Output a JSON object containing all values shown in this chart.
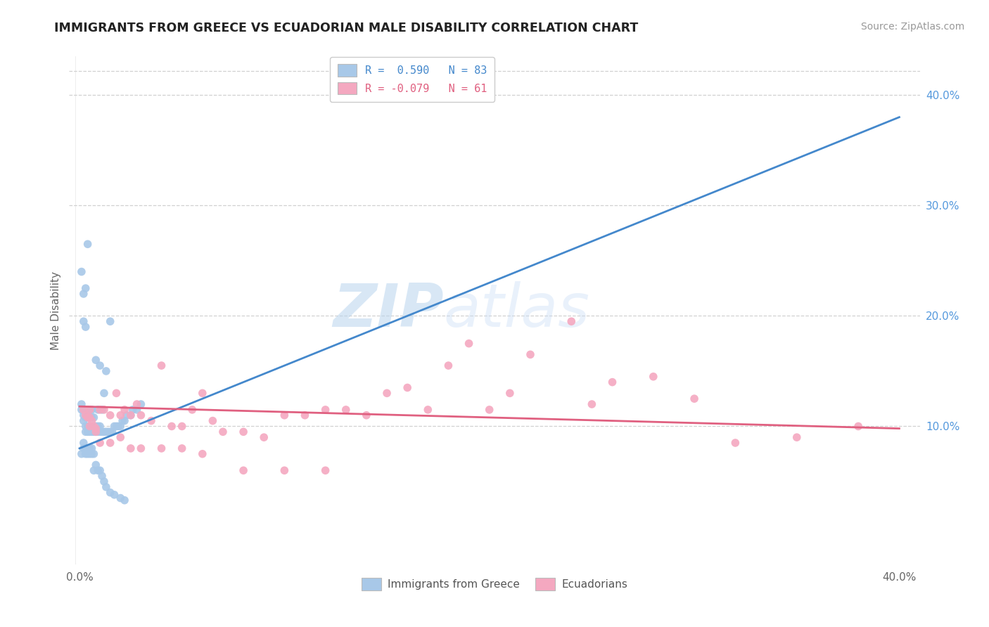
{
  "title": "IMMIGRANTS FROM GREECE VS ECUADORIAN MALE DISABILITY CORRELATION CHART",
  "source": "Source: ZipAtlas.com",
  "ylabel": "Male Disability",
  "right_yticks": [
    "40.0%",
    "30.0%",
    "20.0%",
    "10.0%"
  ],
  "right_ytick_vals": [
    0.4,
    0.3,
    0.2,
    0.1
  ],
  "xlim": [
    -0.005,
    0.41
  ],
  "ylim": [
    -0.025,
    0.435
  ],
  "legend_line1": "R =  0.590   N = 83",
  "legend_line2": "R = -0.079   N = 61",
  "color_blue": "#a8c8e8",
  "color_pink": "#f4a8c0",
  "trendline_blue": "#4488cc",
  "trendline_pink": "#e06080",
  "watermark_zip": "ZIP",
  "watermark_atlas": "atlas",
  "background_color": "#ffffff",
  "grid_color": "#cccccc",
  "blue_trendline_x": [
    0.0,
    0.4
  ],
  "blue_trendline_y": [
    0.08,
    0.38
  ],
  "pink_trendline_x": [
    0.0,
    0.4
  ],
  "pink_trendline_y": [
    0.118,
    0.098
  ],
  "blue_x": [
    0.001,
    0.001,
    0.001,
    0.002,
    0.002,
    0.002,
    0.002,
    0.002,
    0.003,
    0.003,
    0.003,
    0.003,
    0.003,
    0.003,
    0.004,
    0.004,
    0.004,
    0.004,
    0.004,
    0.005,
    0.005,
    0.005,
    0.005,
    0.006,
    0.006,
    0.006,
    0.006,
    0.007,
    0.007,
    0.007,
    0.008,
    0.008,
    0.008,
    0.009,
    0.009,
    0.009,
    0.01,
    0.01,
    0.01,
    0.011,
    0.011,
    0.012,
    0.012,
    0.013,
    0.013,
    0.014,
    0.015,
    0.015,
    0.016,
    0.017,
    0.018,
    0.019,
    0.02,
    0.021,
    0.022,
    0.023,
    0.025,
    0.026,
    0.028,
    0.03,
    0.001,
    0.002,
    0.002,
    0.003,
    0.003,
    0.004,
    0.004,
    0.005,
    0.005,
    0.006,
    0.006,
    0.007,
    0.007,
    0.008,
    0.009,
    0.01,
    0.011,
    0.012,
    0.013,
    0.015,
    0.017,
    0.02,
    0.022
  ],
  "blue_y": [
    0.115,
    0.12,
    0.24,
    0.105,
    0.11,
    0.115,
    0.195,
    0.22,
    0.095,
    0.1,
    0.108,
    0.115,
    0.19,
    0.225,
    0.095,
    0.1,
    0.108,
    0.115,
    0.265,
    0.095,
    0.1,
    0.108,
    0.115,
    0.095,
    0.1,
    0.108,
    0.115,
    0.095,
    0.1,
    0.108,
    0.095,
    0.1,
    0.16,
    0.095,
    0.1,
    0.115,
    0.095,
    0.1,
    0.155,
    0.095,
    0.115,
    0.095,
    0.13,
    0.095,
    0.15,
    0.095,
    0.095,
    0.195,
    0.095,
    0.1,
    0.1,
    0.1,
    0.1,
    0.105,
    0.105,
    0.11,
    0.11,
    0.115,
    0.115,
    0.12,
    0.075,
    0.08,
    0.085,
    0.075,
    0.08,
    0.075,
    0.08,
    0.075,
    0.08,
    0.075,
    0.08,
    0.075,
    0.06,
    0.065,
    0.06,
    0.06,
    0.055,
    0.05,
    0.045,
    0.04,
    0.038,
    0.035,
    0.033
  ],
  "pink_x": [
    0.002,
    0.003,
    0.004,
    0.005,
    0.005,
    0.006,
    0.007,
    0.008,
    0.01,
    0.012,
    0.015,
    0.018,
    0.02,
    0.022,
    0.025,
    0.028,
    0.03,
    0.035,
    0.04,
    0.045,
    0.05,
    0.055,
    0.06,
    0.065,
    0.07,
    0.08,
    0.09,
    0.1,
    0.11,
    0.12,
    0.13,
    0.14,
    0.15,
    0.16,
    0.17,
    0.18,
    0.19,
    0.2,
    0.21,
    0.22,
    0.24,
    0.25,
    0.26,
    0.28,
    0.3,
    0.32,
    0.35,
    0.38,
    0.005,
    0.008,
    0.01,
    0.015,
    0.02,
    0.025,
    0.03,
    0.04,
    0.05,
    0.06,
    0.08,
    0.1,
    0.12
  ],
  "pink_y": [
    0.115,
    0.11,
    0.108,
    0.108,
    0.115,
    0.105,
    0.1,
    0.098,
    0.115,
    0.115,
    0.11,
    0.13,
    0.11,
    0.115,
    0.11,
    0.12,
    0.11,
    0.105,
    0.155,
    0.1,
    0.1,
    0.115,
    0.13,
    0.105,
    0.095,
    0.095,
    0.09,
    0.11,
    0.11,
    0.115,
    0.115,
    0.11,
    0.13,
    0.135,
    0.115,
    0.155,
    0.175,
    0.115,
    0.13,
    0.165,
    0.195,
    0.12,
    0.14,
    0.145,
    0.125,
    0.085,
    0.09,
    0.1,
    0.1,
    0.095,
    0.085,
    0.085,
    0.09,
    0.08,
    0.08,
    0.08,
    0.08,
    0.075,
    0.06,
    0.06,
    0.06
  ]
}
